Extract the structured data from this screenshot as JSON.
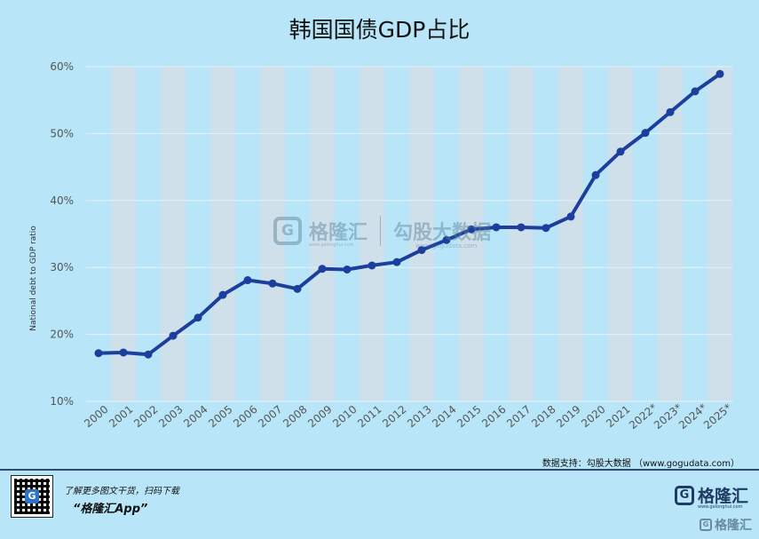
{
  "title": "韩国国债GDP占比",
  "source": "数据支持：勾股大数据 （www.gogudata.com）",
  "promo": {
    "line1": "了解更多图文干货，扫码下载",
    "line2": "“格隆汇App”"
  },
  "brand": {
    "name": "格隆汇",
    "sub": "www.gelonghui.com",
    "watermark": "格隆汇"
  },
  "center_watermark": {
    "name": "格隆汇",
    "data": "勾股大数据",
    "sub1": "www.gelonghui.com",
    "sub2": "www.gogudata.com"
  },
  "colors": {
    "background": "#b8e6f8",
    "band": "#cfe0ea",
    "line": "#1c3f9e",
    "grid": "#e6f1f7"
  },
  "chart_data": {
    "type": "line",
    "title": "韩国国债GDP占比",
    "ylabel": "National debt to GDP ratio",
    "xlabel": "",
    "ylim": [
      10,
      60
    ],
    "yticks": [
      "10%",
      "20%",
      "30%",
      "40%",
      "50%",
      "60%"
    ],
    "ytick_values": [
      10,
      20,
      30,
      40,
      50,
      60
    ],
    "grid": true,
    "categories": [
      "2000",
      "2001",
      "2002",
      "2003",
      "2004",
      "2005",
      "2006",
      "2007",
      "2008",
      "2009",
      "2010",
      "2011",
      "2012",
      "2013",
      "2014",
      "2015",
      "2016",
      "2017",
      "2018",
      "2019",
      "2020",
      "2021",
      "2022*",
      "2023*",
      "2024*",
      "2025*"
    ],
    "series": [
      {
        "values": [
          17.2,
          17.3,
          17.0,
          19.8,
          22.5,
          25.9,
          28.1,
          27.6,
          26.8,
          29.8,
          29.7,
          30.3,
          30.8,
          32.6,
          34.1,
          35.7,
          36.0,
          36.0,
          35.9,
          37.6,
          43.8,
          47.3,
          50.1,
          53.2,
          56.3,
          58.9
        ]
      }
    ]
  }
}
